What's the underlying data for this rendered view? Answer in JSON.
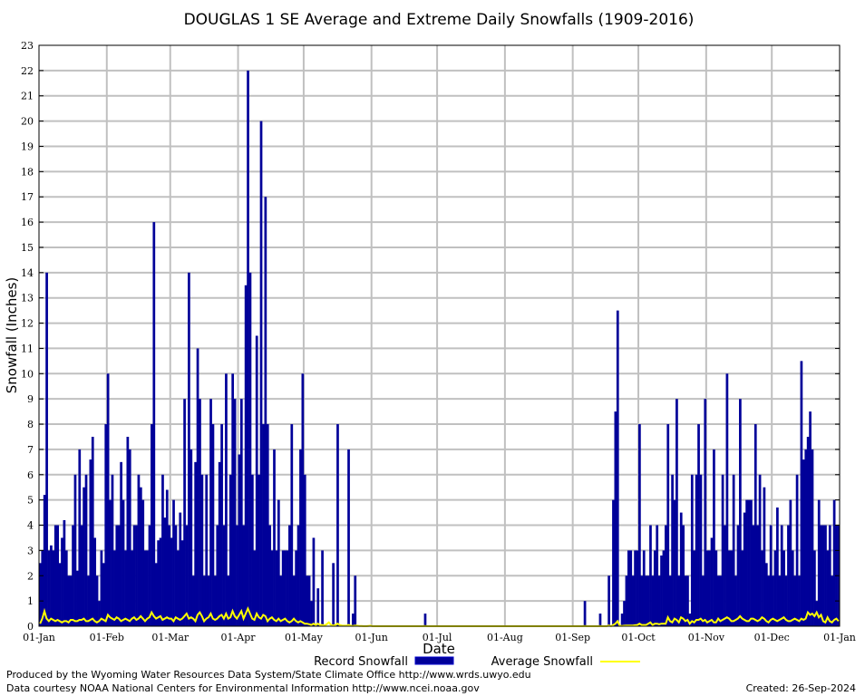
{
  "chart_data": {
    "type": "bar",
    "title": "DOUGLAS 1 SE Average and Extreme Daily Snowfalls (1909-2016)",
    "xlabel": "Date",
    "ylabel": "Snowfall (Inches)",
    "ylim": [
      0,
      23
    ],
    "yticks": [
      "0",
      "1",
      "2",
      "3",
      "4",
      "5",
      "6",
      "7",
      "8",
      "9",
      "10",
      "11",
      "12",
      "13",
      "14",
      "15",
      "16",
      "17",
      "18",
      "19",
      "20",
      "21",
      "22",
      "23"
    ],
    "xticks": [
      "01-Jan",
      "01-Feb",
      "01-Mar",
      "01-Apr",
      "01-May",
      "01-Jun",
      "01-Jul",
      "01-Aug",
      "01-Sep",
      "01-Oct",
      "01-Nov",
      "01-Dec",
      "01-Jan"
    ],
    "xtick_days": [
      0,
      31,
      60,
      91,
      121,
      152,
      182,
      213,
      244,
      274,
      305,
      335,
      366
    ],
    "grid": true,
    "legend": "bottom",
    "series": [
      {
        "name": "Record Snowfall",
        "color": "#000099",
        "style": "bar",
        "values": [
          2.5,
          3,
          5.2,
          14,
          3,
          3.2,
          3,
          4,
          4,
          2.5,
          3.5,
          4.2,
          3,
          2,
          2,
          4,
          6,
          2.2,
          7,
          4,
          5.5,
          6,
          2,
          6.6,
          7.5,
          3.5,
          2,
          1,
          3,
          2.5,
          8,
          10,
          5,
          6,
          3,
          4,
          4,
          6.5,
          5,
          3,
          7.5,
          7,
          3,
          4,
          4,
          6,
          5.5,
          5,
          3,
          3,
          4,
          8,
          16,
          2.5,
          3.4,
          3.5,
          6,
          4.3,
          5.4,
          4,
          3.5,
          5,
          4,
          3,
          4.5,
          3.4,
          9,
          4,
          14,
          7,
          2,
          6.5,
          11,
          9,
          6,
          2,
          6,
          2,
          9,
          8,
          2,
          4,
          6.5,
          8,
          4,
          10,
          2,
          6,
          10,
          9,
          4,
          6.8,
          9,
          4,
          13.5,
          22,
          14,
          6,
          3,
          11.5,
          6,
          20,
          8,
          17,
          8,
          4,
          3,
          7,
          3,
          5,
          2,
          3,
          3,
          3,
          4,
          8,
          2,
          3,
          4,
          7,
          10,
          6,
          2,
          2,
          1,
          3.5,
          0,
          1.5,
          0,
          3,
          0,
          0,
          0,
          0,
          2.5,
          0,
          8,
          0,
          0,
          0,
          0,
          7,
          0,
          0.5,
          2,
          0,
          0,
          0,
          0,
          0,
          0,
          0,
          0,
          0,
          0,
          0,
          0,
          0,
          0,
          0,
          0,
          0,
          0,
          0,
          0,
          0,
          0,
          0,
          0,
          0,
          0,
          0,
          0,
          0,
          0,
          0,
          0.5,
          0,
          0,
          0,
          0,
          0,
          0,
          0,
          0,
          0,
          0,
          0,
          0,
          0,
          0,
          0,
          0,
          0,
          0,
          0,
          0,
          0,
          0,
          0,
          0,
          0,
          0,
          0,
          0,
          0,
          0,
          0,
          0,
          0,
          0,
          0,
          0,
          0,
          0,
          0,
          0,
          0,
          0,
          0,
          0,
          0,
          0,
          0,
          0,
          0,
          0,
          0,
          0,
          0,
          0,
          0,
          0,
          0,
          0,
          0,
          0,
          0,
          0,
          0,
          0,
          0,
          0,
          0,
          0,
          0,
          0,
          0,
          0,
          1,
          0,
          0,
          0,
          0,
          0,
          0,
          0.5,
          0,
          0,
          0,
          2,
          0,
          5,
          8.5,
          12.5,
          0,
          0.5,
          1,
          2,
          3,
          3,
          2,
          3,
          3,
          8,
          2,
          3,
          2,
          2,
          4,
          2,
          3,
          4,
          2,
          2.8,
          3,
          4,
          8,
          2,
          6,
          5,
          9,
          2,
          4.5,
          4,
          2,
          2,
          0.5,
          6,
          3,
          6,
          8,
          6,
          2,
          9,
          3,
          3,
          3.5,
          7,
          3,
          2,
          2,
          6,
          4,
          10,
          3,
          3,
          6,
          2,
          4,
          9,
          3,
          4.5,
          5,
          5,
          5,
          4,
          8,
          4,
          6,
          3,
          5.5,
          2.5,
          2,
          4,
          2,
          3,
          4.7,
          2,
          4,
          3,
          2,
          4,
          5,
          3,
          2,
          6,
          2,
          10.5,
          6.6,
          7,
          7.5,
          8.5,
          7,
          3,
          1,
          5,
          4,
          4,
          4,
          3,
          4,
          2,
          5,
          4,
          4
        ]
      },
      {
        "name": "Average Snowfall",
        "color": "#ffff00",
        "style": "line",
        "values": [
          0.1,
          0.3,
          0.6,
          0.3,
          0.2,
          0.3,
          0.25,
          0.2,
          0.25,
          0.2,
          0.15,
          0.2,
          0.2,
          0.15,
          0.25,
          0.25,
          0.2,
          0.2,
          0.25,
          0.25,
          0.3,
          0.2,
          0.2,
          0.25,
          0.3,
          0.2,
          0.15,
          0.2,
          0.3,
          0.25,
          0.2,
          0.45,
          0.35,
          0.3,
          0.25,
          0.35,
          0.3,
          0.2,
          0.25,
          0.3,
          0.25,
          0.2,
          0.3,
          0.35,
          0.25,
          0.3,
          0.4,
          0.3,
          0.2,
          0.3,
          0.35,
          0.55,
          0.4,
          0.3,
          0.35,
          0.4,
          0.25,
          0.3,
          0.35,
          0.3,
          0.3,
          0.2,
          0.35,
          0.3,
          0.25,
          0.3,
          0.4,
          0.5,
          0.3,
          0.35,
          0.3,
          0.2,
          0.45,
          0.55,
          0.4,
          0.2,
          0.3,
          0.35,
          0.5,
          0.3,
          0.25,
          0.3,
          0.4,
          0.45,
          0.3,
          0.5,
          0.3,
          0.35,
          0.6,
          0.4,
          0.3,
          0.45,
          0.6,
          0.3,
          0.5,
          0.7,
          0.5,
          0.3,
          0.25,
          0.5,
          0.35,
          0.3,
          0.45,
          0.4,
          0.2,
          0.3,
          0.35,
          0.25,
          0.2,
          0.3,
          0.2,
          0.25,
          0.3,
          0.2,
          0.15,
          0.2,
          0.3,
          0.2,
          0.15,
          0.2,
          0.15,
          0.1,
          0.1,
          0.08,
          0.05,
          0.1,
          0.05,
          0.1,
          0.05,
          0.05,
          0.03,
          0.08,
          0.15,
          0.05,
          0.03,
          0.05,
          0.1,
          0.05,
          0.03,
          0.02,
          0.02,
          0.05,
          0.02,
          0.01,
          0.03,
          0.02,
          0.01,
          0.01,
          0,
          0,
          0.01,
          0.02,
          0,
          0,
          0,
          0,
          0,
          0,
          0,
          0,
          0,
          0,
          0,
          0,
          0,
          0,
          0,
          0,
          0,
          0,
          0,
          0,
          0,
          0,
          0,
          0,
          0.01,
          0,
          0,
          0,
          0,
          0,
          0,
          0,
          0,
          0,
          0,
          0,
          0,
          0,
          0,
          0,
          0,
          0,
          0,
          0,
          0,
          0,
          0,
          0,
          0,
          0,
          0,
          0,
          0,
          0,
          0,
          0,
          0,
          0,
          0,
          0,
          0,
          0,
          0,
          0,
          0,
          0,
          0,
          0,
          0,
          0,
          0,
          0,
          0,
          0,
          0,
          0,
          0,
          0,
          0,
          0,
          0,
          0,
          0,
          0,
          0,
          0,
          0,
          0,
          0,
          0,
          0,
          0,
          0,
          0,
          0,
          0,
          0,
          0.01,
          0,
          0,
          0,
          0,
          0,
          0,
          0.01,
          0,
          0,
          0,
          0.03,
          0,
          0.05,
          0.1,
          0.2,
          0.02,
          0.01,
          0.02,
          0.03,
          0.03,
          0.03,
          0.03,
          0.04,
          0.05,
          0.1,
          0.05,
          0.05,
          0.05,
          0.1,
          0.15,
          0.05,
          0.1,
          0.1,
          0.08,
          0.1,
          0.1,
          0.1,
          0.35,
          0.2,
          0.15,
          0.3,
          0.25,
          0.15,
          0.35,
          0.3,
          0.2,
          0.25,
          0.1,
          0.2,
          0.15,
          0.25,
          0.25,
          0.3,
          0.2,
          0.25,
          0.15,
          0.2,
          0.25,
          0.15,
          0.15,
          0.3,
          0.2,
          0.25,
          0.3,
          0.35,
          0.3,
          0.2,
          0.2,
          0.25,
          0.3,
          0.4,
          0.3,
          0.25,
          0.2,
          0.2,
          0.3,
          0.3,
          0.25,
          0.2,
          0.25,
          0.35,
          0.3,
          0.2,
          0.15,
          0.25,
          0.3,
          0.25,
          0.2,
          0.25,
          0.3,
          0.35,
          0.25,
          0.2,
          0.2,
          0.25,
          0.3,
          0.25,
          0.2,
          0.3,
          0.25,
          0.3,
          0.55,
          0.45,
          0.5,
          0.4,
          0.55,
          0.35,
          0.45,
          0.2,
          0.15,
          0.35,
          0.2,
          0.15,
          0.25,
          0.3,
          0.2
        ]
      }
    ]
  },
  "legend": {
    "record_label": "Record Snowfall",
    "average_label": "Average Snowfall"
  },
  "footer": {
    "line1": "Produced by the Wyoming Water Resources Data System/State Climate Office http://www.wrds.uwyo.edu",
    "line2": "Data courtesy NOAA National Centers for Environmental Information http://www.ncei.noaa.gov",
    "created": "Created:  26-Sep-2024"
  }
}
